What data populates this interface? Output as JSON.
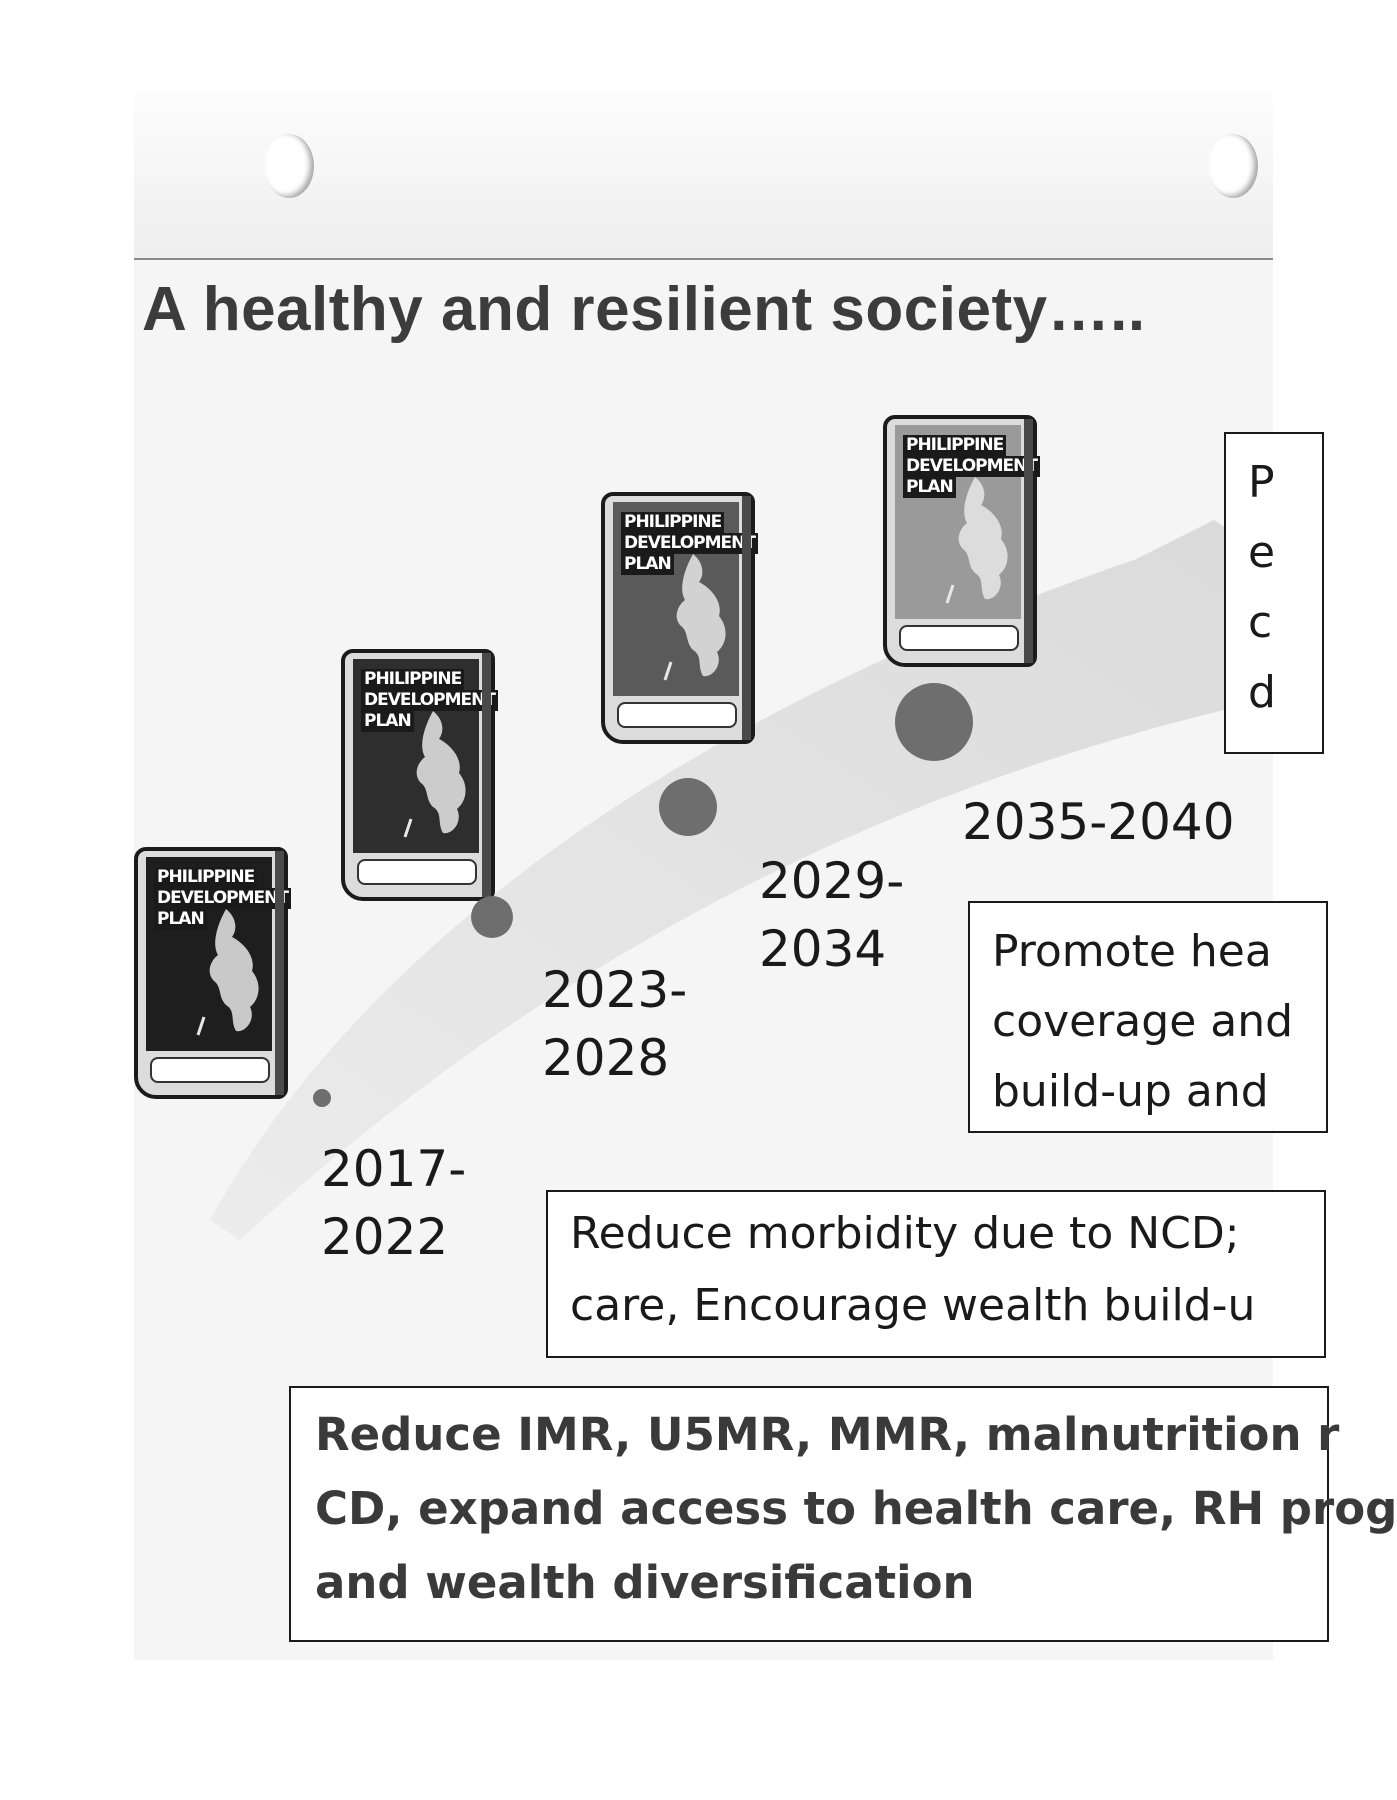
{
  "title": "A healthy and resilient society…..",
  "book_label_lines": [
    "PHILIPPINE",
    "DEVELOPMENT",
    "PLAN"
  ],
  "books": [
    {
      "name": "book-2017",
      "shade": "#1e1e1e"
    },
    {
      "name": "book-2023",
      "shade": "#2e2e2e"
    },
    {
      "name": "book-2029",
      "shade": "#5a5a5a"
    },
    {
      "name": "book-2035",
      "shade": "#9a9a9a"
    }
  ],
  "periods": [
    {
      "label": "2017-\n2022"
    },
    {
      "label": "2023-\n2028"
    },
    {
      "label": "2029-\n2034"
    },
    {
      "label": "2035-2040"
    }
  ],
  "goals": {
    "long_term_lines": [
      "P",
      "e",
      "c",
      "d"
    ],
    "mid_term_lines": [
      "Promote hea",
      "coverage and",
      "build-up and"
    ],
    "near_term_lines": [
      "Reduce morbidity due to NCD;",
      "care, Encourage wealth build-u"
    ],
    "current_lines": [
      "Reduce IMR, U5MR, MMR, malnutrition r",
      "CD, expand access to health care, RH prog",
      "and wealth diversification"
    ]
  }
}
